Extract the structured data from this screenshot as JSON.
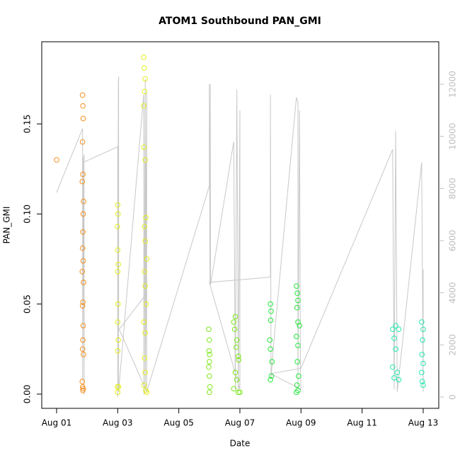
{
  "chart_data": {
    "type": "scatter",
    "title": "ATOM1 Southbound PAN_GMI",
    "x_label": "Date",
    "y_label": "PAN_GMI",
    "xlim": [
      0.514,
      13.51
    ],
    "xticks": [
      {
        "value": 1,
        "label": "Aug 01"
      },
      {
        "value": 3,
        "label": "Aug 03"
      },
      {
        "value": 5,
        "label": "Aug 05"
      },
      {
        "value": 7,
        "label": "Aug 07"
      },
      {
        "value": 9,
        "label": "Aug 09"
      },
      {
        "value": 11,
        "label": "Aug 11"
      },
      {
        "value": 13,
        "label": "Aug 13"
      }
    ],
    "ylim": [
      -0.0079,
      0.1956
    ],
    "yticks": [
      {
        "value": 0,
        "label": "0.00"
      },
      0.05,
      {
        "value": 0.1,
        "label": "0.10"
      },
      0.15
    ],
    "y2lim": [
      -434,
      13630
    ],
    "y2ticks": [
      0,
      2000,
      4000,
      6000,
      8000,
      10000,
      12000
    ],
    "series": [
      {
        "color": "#f5901f",
        "x": [
          1.0,
          1.85,
          1.86,
          1.87,
          1.85,
          1.86,
          1.84,
          1.88,
          1.87,
          1.86,
          1.85,
          1.87,
          1.84,
          1.88,
          1.86,
          1.85,
          1.87,
          1.86,
          1.85,
          1.88,
          1.84,
          1.85,
          1.86,
          1.87
        ],
        "values": [
          0.13,
          0.166,
          0.16,
          0.153,
          0.14,
          0.122,
          0.118,
          0.107,
          0.1,
          0.09,
          0.081,
          0.074,
          0.068,
          0.062,
          0.051,
          0.049,
          0.038,
          0.03,
          0.025,
          0.022,
          0.007,
          0.004,
          0.002,
          0.003
        ]
      },
      {
        "color": "#e4ee1a",
        "x": [
          3.0,
          3.01,
          2.99,
          3.0,
          3.02,
          3.0,
          3.01,
          3.0,
          3.02,
          3.0,
          2.99,
          3.03,
          3.0,
          3.85,
          3.87,
          3.9,
          3.88,
          3.85,
          3.86,
          3.9,
          3.92,
          3.88,
          3.9,
          3.95,
          3.88,
          3.9,
          3.93,
          3.86,
          3.9,
          3.88,
          3.9,
          3.86,
          3.92,
          3.95
        ],
        "values": [
          0.105,
          0.1,
          0.093,
          0.08,
          0.072,
          0.068,
          0.05,
          0.04,
          0.03,
          0.024,
          0.004,
          0.004,
          0.001,
          0.187,
          0.181,
          0.175,
          0.168,
          0.16,
          0.137,
          0.13,
          0.098,
          0.093,
          0.085,
          0.075,
          0.068,
          0.06,
          0.05,
          0.04,
          0.034,
          0.02,
          0.012,
          0.005,
          0.002,
          0.001
        ]
      },
      {
        "color": "#7ee81c",
        "x": [
          5.98,
          6.0,
          5.99,
          6.01,
          6.0,
          5.98,
          6.0,
          6.02,
          6.0,
          6.85,
          6.8,
          6.83,
          6.9,
          6.88,
          6.95,
          6.96,
          6.85,
          6.9,
          6.8,
          6.95,
          7.0
        ],
        "values": [
          0.036,
          0.03,
          0.024,
          0.022,
          0.018,
          0.015,
          0.01,
          0.004,
          0.001,
          0.043,
          0.04,
          0.036,
          0.03,
          0.026,
          0.021,
          0.019,
          0.012,
          0.008,
          0.003,
          0.001,
          0.001
        ]
      },
      {
        "color": "#22e83a",
        "x": [
          8.0,
          8.02,
          8.01,
          7.98,
          8.0,
          8.05,
          8.03,
          8.0,
          8.85,
          8.88,
          8.9,
          8.87,
          8.9,
          8.95,
          8.85,
          8.9,
          8.88,
          8.92,
          8.87,
          8.85,
          8.9
        ],
        "values": [
          0.05,
          0.046,
          0.041,
          0.03,
          0.025,
          0.018,
          0.01,
          0.008,
          0.06,
          0.056,
          0.052,
          0.048,
          0.04,
          0.038,
          0.032,
          0.027,
          0.018,
          0.01,
          0.005,
          0.001,
          0.002
        ]
      },
      {
        "color": "#22e8b0",
        "x": [
          12.0,
          12.05,
          12.1,
          12.2,
          12.1,
          12.0,
          12.15,
          12.05,
          12.2,
          12.95,
          13.0,
          12.98,
          12.96,
          13.0,
          12.95,
          12.97,
          13.0
        ],
        "values": [
          0.036,
          0.031,
          0.038,
          0.036,
          0.025,
          0.015,
          0.012,
          0.009,
          0.008,
          0.04,
          0.036,
          0.03,
          0.022,
          0.017,
          0.012,
          0.007,
          0.005
        ]
      },
      {
        "color": "#c8c8c8",
        "axis": "y2",
        "style": "line",
        "x": [
          1.0,
          1.85,
          1.85,
          1.87,
          1.9,
          1.9,
          1.87,
          3.0,
          3.0,
          3.02,
          3.03,
          3.03,
          3.85,
          3.86,
          3.9,
          3.9,
          3.95,
          3.95,
          3.05,
          3.9,
          3.92,
          3.95,
          6.0,
          6.0,
          6.02,
          6.03,
          6.04,
          6.8,
          6.85,
          6.9,
          6.95,
          7.0,
          7.0,
          6.0,
          8.0,
          8.0,
          8.02,
          8.1,
          8.85,
          8.9,
          8.9,
          8.95,
          8.98,
          9.0,
          8.0,
          9.0,
          12.0,
          12.05,
          12.1,
          12.15,
          12.95,
          13.0,
          13.0
        ],
        "values": [
          7850,
          10300,
          600,
          9100,
          9300,
          100,
          9000,
          9600,
          0,
          12000,
          12300,
          200,
          11600,
          100,
          12200,
          300,
          11700,
          200,
          2600,
          3900,
          9000,
          200,
          8100,
          12000,
          4400,
          12000,
          4300,
          9800,
          300,
          11800,
          200,
          11000,
          300,
          4400,
          4600,
          11600,
          700,
          2000,
          11500,
          11300,
          400,
          11000,
          1000,
          300,
          900,
          1100,
          9500,
          300,
          10200,
          200,
          9000,
          200,
          4900
        ]
      }
    ]
  }
}
